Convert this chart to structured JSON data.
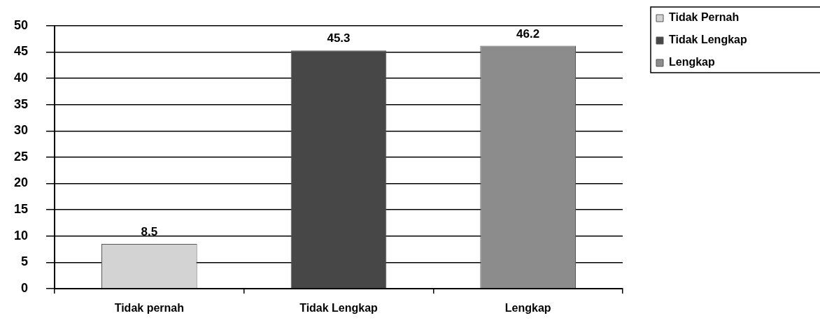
{
  "chart_data": {
    "type": "bar",
    "categories": [
      "Tidak pernah",
      "Tidak Lengkap",
      "Lengkap"
    ],
    "series": [
      {
        "name": "Tidak Pernah",
        "color": "#d3d3d3",
        "values": [
          8.5,
          null,
          null
        ]
      },
      {
        "name": "Tidak Lengkap",
        "color": "#474747",
        "values": [
          null,
          45.3,
          null
        ]
      },
      {
        "name": "Lengkap",
        "color": "#8c8c8c",
        "values": [
          null,
          null,
          46.2
        ]
      }
    ],
    "ylim": [
      0,
      50
    ],
    "yticks": [
      0,
      5,
      10,
      15,
      20,
      25,
      30,
      35,
      40,
      45,
      50
    ],
    "grid": "y",
    "legend": "top right",
    "data_labels": true
  }
}
